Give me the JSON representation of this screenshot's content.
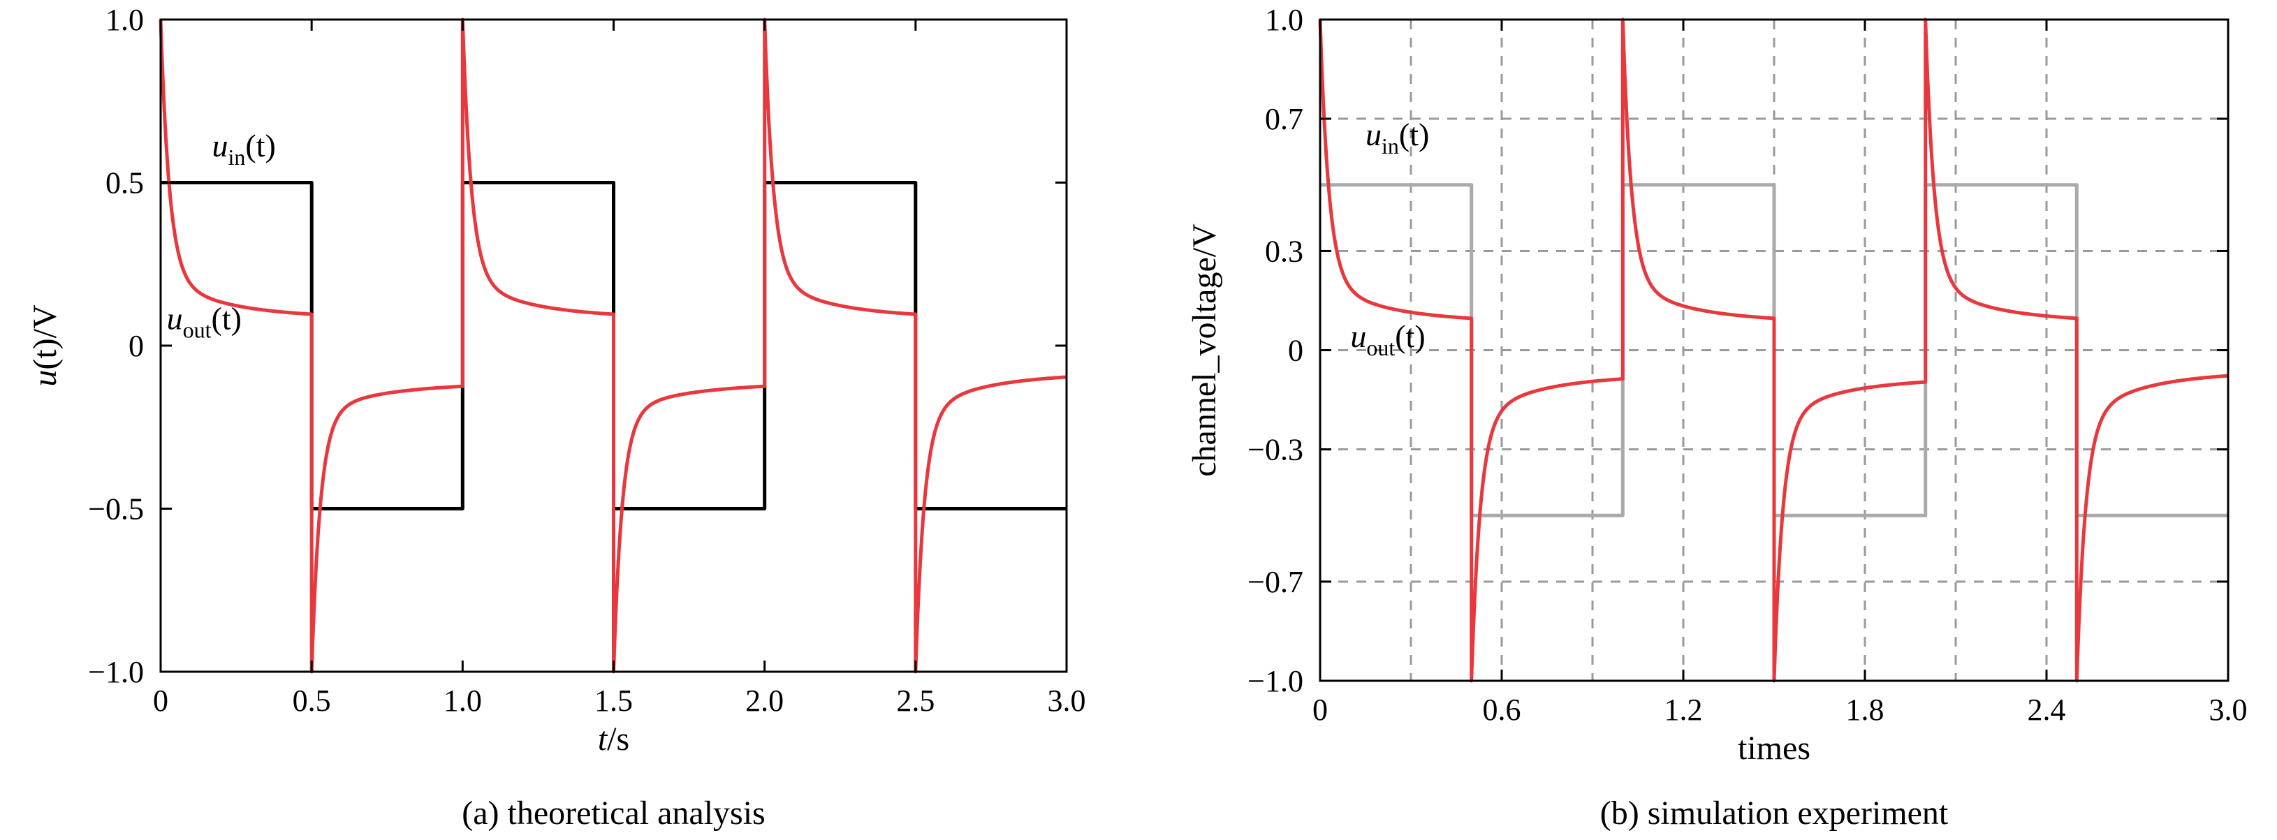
{
  "chart_data": [
    {
      "id": "a",
      "type": "line",
      "caption": "(a) theoretical analysis",
      "xlabel": {
        "main": "t",
        "suffix": "/s"
      },
      "ylabel": {
        "main": "u",
        "arg": "(t)",
        "suffix": "/V"
      },
      "xlim": [
        0,
        3.0
      ],
      "ylim": [
        -1.0,
        1.0
      ],
      "xticks": [
        0,
        0.5,
        1.0,
        1.5,
        2.0,
        2.5,
        3.0
      ],
      "xtick_labels": [
        "0",
        "0.5",
        "1.0",
        "1.5",
        "2.0",
        "2.5",
        "3.0"
      ],
      "yticks": [
        -1.0,
        -0.5,
        0,
        0.5,
        1.0
      ],
      "ytick_labels": [
        "−1.0",
        "−0.5",
        "0",
        "0.5",
        "1.0"
      ],
      "grid": false,
      "annotations": [
        {
          "base": "u",
          "sub": "in",
          "tail": "(t)",
          "x": 0.17,
          "y": 0.58
        },
        {
          "base": "u",
          "sub": "out",
          "tail": "(t)",
          "x": 0.02,
          "y": 0.05
        }
      ],
      "series": [
        {
          "name": "u_in(t)",
          "color": "#000000",
          "x": [
            0,
            0.5,
            0.5,
            1.0,
            1.0,
            1.5,
            1.5,
            2.0,
            2.0,
            2.5,
            2.5,
            3.0
          ],
          "y": [
            0.5,
            0.5,
            -0.5,
            -0.5,
            0.5,
            0.5,
            -0.5,
            -0.5,
            0.5,
            0.5,
            -0.5,
            -0.5
          ]
        },
        {
          "name": "u_out(t)",
          "color": "#e8383d",
          "model": "decaying overshoot after each input edge",
          "edges": [
            0,
            0.5,
            1.0,
            1.5,
            2.0,
            2.5
          ],
          "edge_signs": [
            1,
            -1,
            1,
            -1,
            1,
            -1
          ],
          "peak": 1.0,
          "settle": 0.1,
          "y_start": 1.0,
          "y_end_before_edge": [
            0.1,
            -0.13,
            0.1,
            -0.13,
            0.1,
            -0.1
          ]
        }
      ]
    },
    {
      "id": "b",
      "type": "line",
      "caption": "(b) simulation experiment",
      "xlabel": {
        "main": "times",
        "suffix": ""
      },
      "ylabel": {
        "main": "channel_voltage/V",
        "arg": "",
        "suffix": ""
      },
      "xlim": [
        0,
        3.0
      ],
      "ylim": [
        -1.0,
        1.0
      ],
      "xticks": [
        0,
        0.6,
        1.2,
        1.8,
        2.4,
        3.0
      ],
      "xtick_labels": [
        "0",
        "0.6",
        "1.2",
        "1.8",
        "2.4",
        "3.0"
      ],
      "yticks": [
        -1.0,
        -0.7,
        -0.3,
        0,
        0.3,
        0.7,
        1.0
      ],
      "ytick_labels": [
        "−1.0",
        "−0.7",
        "−0.3",
        "0",
        "0.3",
        "0.7",
        "1.0"
      ],
      "grid": true,
      "annotations": [
        {
          "base": "u",
          "sub": "in",
          "tail": "(t)",
          "x": 0.15,
          "y": 0.62
        },
        {
          "base": "u",
          "sub": "out",
          "tail": "(t)",
          "x": 0.1,
          "y": 0.01
        }
      ],
      "series": [
        {
          "name": "u_in(t)",
          "color": "#aaaaaa",
          "x": [
            0,
            0.5,
            0.5,
            1.0,
            1.0,
            1.5,
            1.5,
            2.0,
            2.0,
            2.5,
            2.5,
            3.0
          ],
          "y": [
            0.5,
            0.5,
            -0.5,
            -0.5,
            0.5,
            0.5,
            -0.5,
            -0.5,
            0.5,
            0.5,
            -0.5,
            -0.5
          ]
        },
        {
          "name": "u_out(t)",
          "color": "#e8383d",
          "model": "decaying overshoot after each input edge",
          "edges": [
            0,
            0.5,
            1.0,
            1.5,
            2.0,
            2.5
          ],
          "edge_signs": [
            1,
            -1,
            1,
            -1,
            1,
            -1
          ],
          "peak": 1.0,
          "settle": 0.1,
          "y_start": 1.0,
          "y_end_before_edge": [
            0.1,
            -0.09,
            0.1,
            -0.1,
            0.1,
            -0.08
          ]
        }
      ]
    }
  ]
}
